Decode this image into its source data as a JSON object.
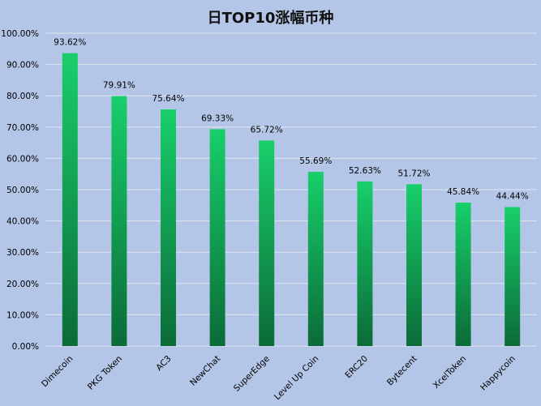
{
  "chart_data": {
    "type": "bar",
    "title": "日TOP10涨幅币种",
    "categories": [
      "Dimecoin",
      "PKG Token",
      "AC3",
      "NewChat",
      "SuperEdge",
      "Level Up Coin",
      "ERC20",
      "Bytecent",
      "XcelToken",
      "Happycoin"
    ],
    "values": [
      93.62,
      79.91,
      75.64,
      69.33,
      65.72,
      55.69,
      52.63,
      51.72,
      45.84,
      44.44
    ],
    "value_labels": [
      "93.62%",
      "79.91%",
      "75.64%",
      "69.33%",
      "65.72%",
      "55.69%",
      "52.63%",
      "51.72%",
      "45.84%",
      "44.44%"
    ],
    "y_ticks": [
      "0.00%",
      "10.00%",
      "20.00%",
      "30.00%",
      "40.00%",
      "50.00%",
      "60.00%",
      "70.00%",
      "80.00%",
      "90.00%",
      "100.00%"
    ],
    "ylim": [
      0,
      100
    ],
    "grid": true,
    "legend": false,
    "colors": {
      "background": "#b4c6e7",
      "bar_top": "#18cf6a",
      "bar_bottom": "#0b6b38",
      "grid": "#dfe6f3"
    }
  }
}
